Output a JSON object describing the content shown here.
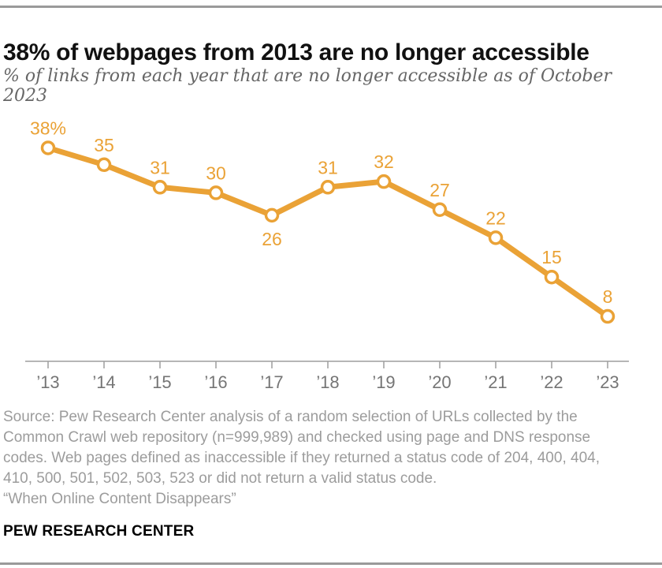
{
  "chart_data": {
    "type": "line",
    "title": "38% of webpages from 2013 are no longer accessible",
    "subtitle": "% of links from each year that are no longer accessible as of October 2023",
    "categories": [
      "’13",
      "’14",
      "’15",
      "’16",
      "’17",
      "’18",
      "’19",
      "’20",
      "’21",
      "’22",
      "’23"
    ],
    "values": [
      38,
      35,
      31,
      30,
      26,
      31,
      32,
      27,
      22,
      15,
      8
    ],
    "point_labels": [
      "38%",
      "35",
      "31",
      "30",
      "26",
      "31",
      "32",
      "27",
      "22",
      "15",
      "8"
    ],
    "label_below_indices": [
      4
    ],
    "series_name": "links no longer accessible (%)",
    "xlabel": "",
    "ylabel": "",
    "ylim": [
      0,
      47
    ],
    "grid": false,
    "legend": "none",
    "line_color": "#eaa236",
    "marker_style": "open-circle",
    "marker_fill": "#ffffff",
    "axis_color": "#9e9e9e",
    "tick_label_color": "#757575"
  },
  "source": {
    "lines": [
      "Source: Pew Research Center analysis of a random selection of URLs collected by the",
      "Common Crawl web repository (n=999,989) and checked using page and DNS response",
      "codes. Web pages defined as inaccessible if they returned a status code of 204, 400, 404,",
      "410, 500, 501, 502, 503, 523 or did not return a valid status code."
    ],
    "quote": "“When Online Content Disappears”"
  },
  "footer": {
    "brand": "PEW RESEARCH CENTER"
  }
}
